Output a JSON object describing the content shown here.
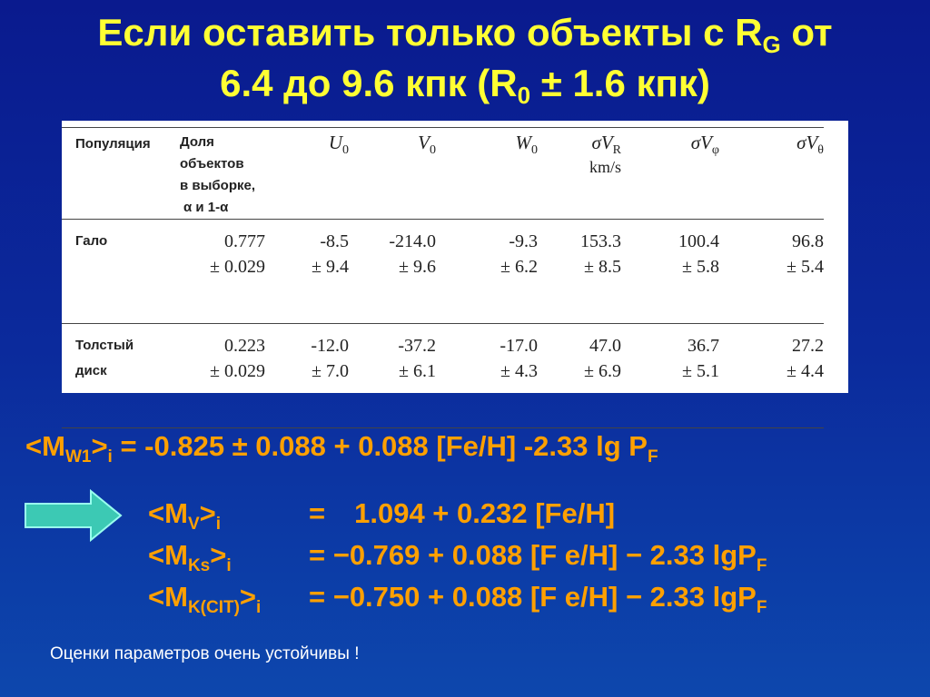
{
  "title": {
    "lines": [
      [
        {
          "text": "Если оставить только объекты с R",
          "sub": "G"
        },
        {
          "text": " от"
        }
      ],
      [
        {
          "text": "6.4 до 9.6 кпк (R",
          "sub": "0"
        },
        {
          "text": " ± 1.6 кпк)"
        }
      ]
    ]
  },
  "table": {
    "headers": [
      {
        "lines": [
          "Популяция"
        ]
      },
      {
        "lines": [
          "Доля объектов",
          "в выборке,"
        ],
        "note": "α и 1-α"
      },
      {
        "main": "U",
        "sub": "0"
      },
      {
        "main": "V",
        "sub": "0"
      },
      {
        "main": "W",
        "sub": "0"
      },
      {
        "main": "σV",
        "sub": "R",
        "unit": "km/s"
      },
      {
        "main": "σV",
        "sub": "φ"
      },
      {
        "main": "σV",
        "sub": "θ"
      }
    ],
    "rows": [
      {
        "name": [
          "Гало"
        ],
        "cells": [
          {
            "value": "0.777",
            "error": "± 0.029"
          },
          {
            "value": "-8.5",
            "error": "± 9.4"
          },
          {
            "value": "-214.0",
            "error": "± 9.6"
          },
          {
            "value": "-9.3",
            "error": "± 6.2"
          },
          {
            "value": "153.3",
            "error": "± 8.5"
          },
          {
            "value": "100.4",
            "error": "± 5.8"
          },
          {
            "value": "96.8",
            "error": "± 5.4"
          }
        ]
      },
      {
        "name": [
          "Толстый",
          "диск"
        ],
        "cells": [
          {
            "value": "0.223",
            "error": "± 0.029"
          },
          {
            "value": "-12.0",
            "error": "± 7.0"
          },
          {
            "value": "-37.2",
            "error": "± 6.1"
          },
          {
            "value": "-17.0",
            "error": "± 4.3"
          },
          {
            "value": "47.0",
            "error": "± 6.9"
          },
          {
            "value": "36.7",
            "error": "± 5.1"
          },
          {
            "value": "27.2",
            "error": "± 4.4"
          }
        ]
      }
    ]
  },
  "main_formula": [
    {
      "text": "<M",
      "sub": "W1"
    },
    {
      "text": ">",
      "sub": "i"
    },
    {
      "text": " = -0.825 ± 0.088 + 0.088 [Fe/H] -2.33 lg P",
      "sub": "F"
    }
  ],
  "formulas": [
    {
      "lhs": [
        {
          "text": "<M",
          "sub": "V"
        },
        {
          "text": ">",
          "sub": "i"
        }
      ],
      "rhs": [
        {
          "text": "="
        },
        {
          "text": "1.094 + 0.232 [Fe/H]"
        }
      ]
    },
    {
      "lhs": [
        {
          "text": "<M",
          "sub": "Ks"
        },
        {
          "text": ">",
          "sub": "i"
        }
      ],
      "rhs": [
        {
          "text": "= −0.769 + 0.088 [F e/H] − 2.33 lgP",
          "sub": "F"
        }
      ]
    },
    {
      "lhs": [
        {
          "text": "<M",
          "sub": "K(CIT)"
        },
        {
          "text": ">",
          "sub": "i"
        }
      ],
      "rhs": [
        {
          "text": "= −0.750 + 0.088 [F e/H] − 2.33 lgP",
          "sub": "F"
        }
      ]
    }
  ],
  "note": "Оценки параметров очень устойчивы !"
}
